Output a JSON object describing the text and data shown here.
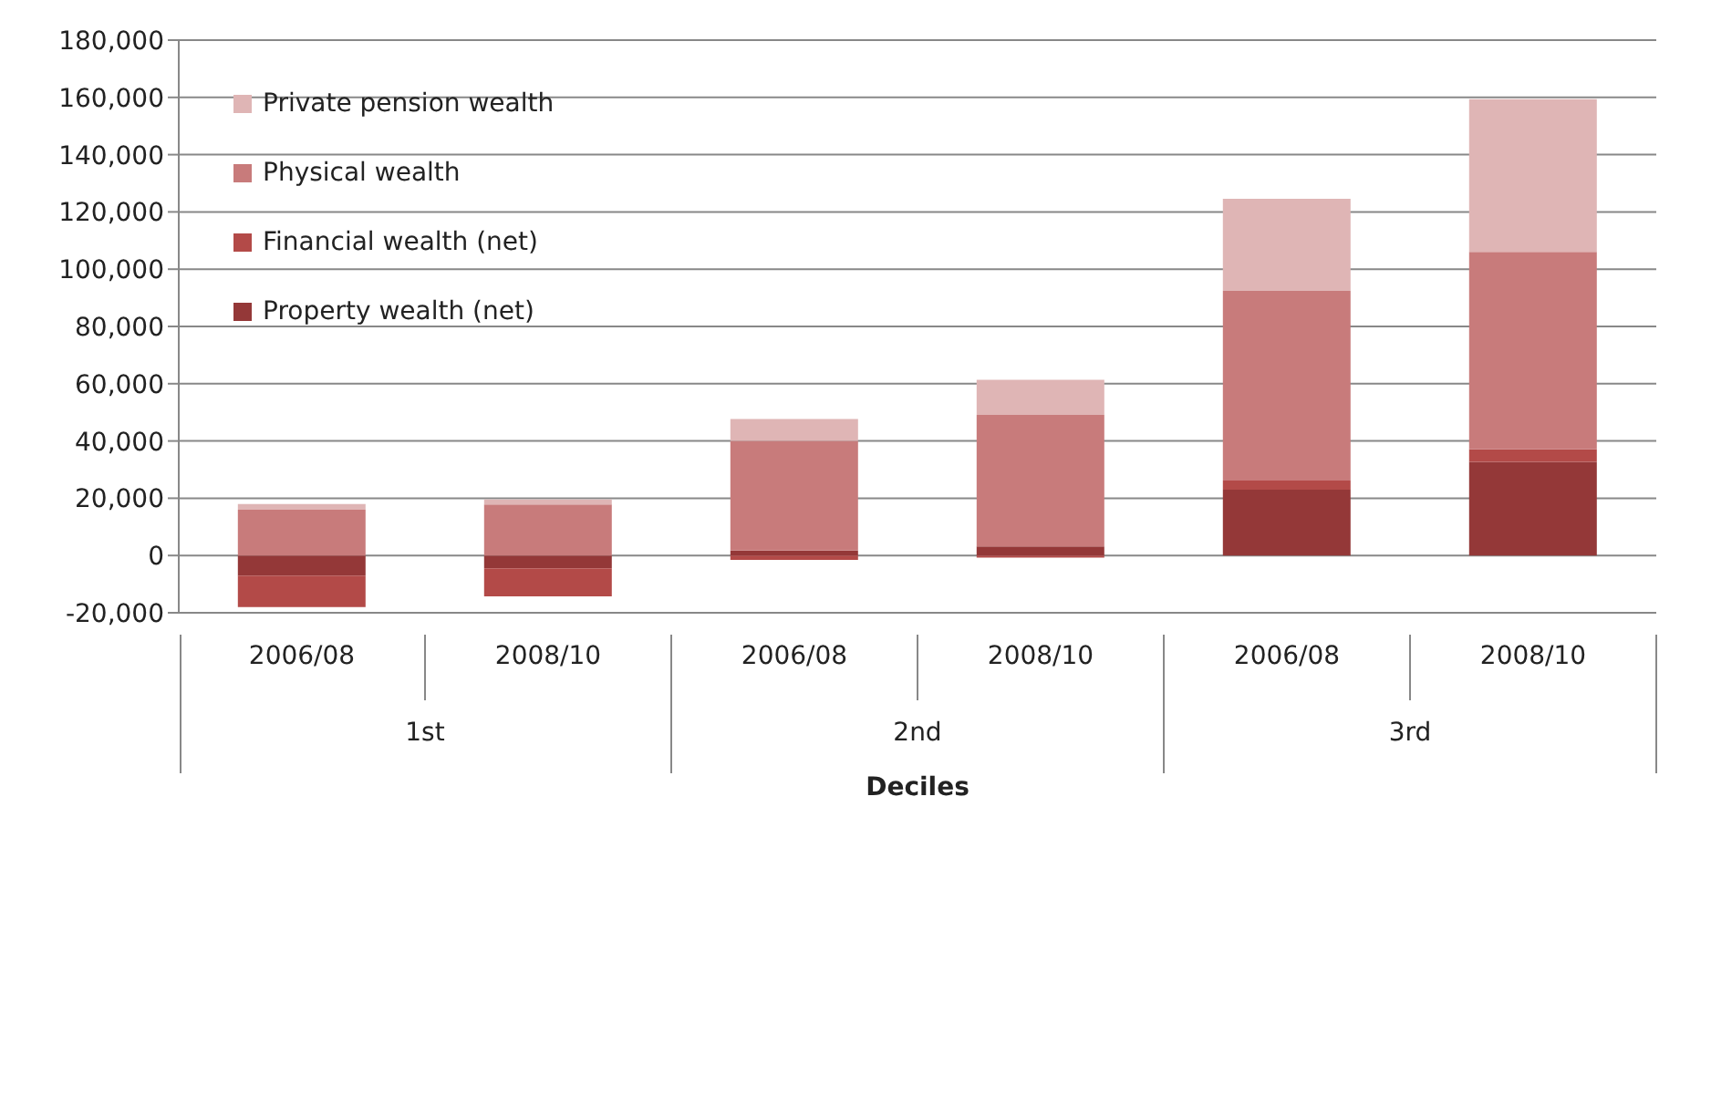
{
  "chart_data": {
    "type": "bar",
    "stacked": true,
    "xlabel": "Deciles",
    "categories": [
      "2006/08",
      "2008/10",
      "2006/08",
      "2008/10",
      "2006/08",
      "2008/10"
    ],
    "annotations": [
      "1st",
      "2nd",
      "3rd"
    ],
    "series": [
      {
        "name": "Property wealth (net)",
        "color": "#943838",
        "values": [
          -7000,
          -4500,
          1700,
          3200,
          23000,
          32700
        ]
      },
      {
        "name": "Financial wealth (net)",
        "color": "#b34a48",
        "values": [
          -11000,
          -9800,
          -1500,
          -700,
          3200,
          4400
        ]
      },
      {
        "name": "Physical wealth",
        "color": "#c87b7b",
        "values": [
          16000,
          17800,
          38300,
          45900,
          66200,
          68900
        ]
      },
      {
        "name": "Private pension wealth",
        "color": "#dfb5b5",
        "values": [
          2000,
          1800,
          7700,
          12300,
          32200,
          53400
        ]
      }
    ],
    "ylim": [
      -20000,
      180000
    ],
    "yticks": [
      {
        "value": -20000,
        "label": "-20,000"
      },
      0,
      {
        "value": 20000,
        "label": "20,000"
      },
      {
        "value": 40000,
        "label": "40,000"
      },
      {
        "value": 60000,
        "label": "60,000"
      },
      {
        "value": 80000,
        "label": "80,000"
      },
      {
        "value": 100000,
        "label": "100,000"
      },
      {
        "value": 120000,
        "label": "120,000"
      },
      {
        "value": 140000,
        "label": "140,000"
      },
      {
        "value": 160000,
        "label": "160,000"
      },
      {
        "value": 180000,
        "label": "180,000"
      }
    ],
    "grid": "y",
    "legend": "top left"
  }
}
